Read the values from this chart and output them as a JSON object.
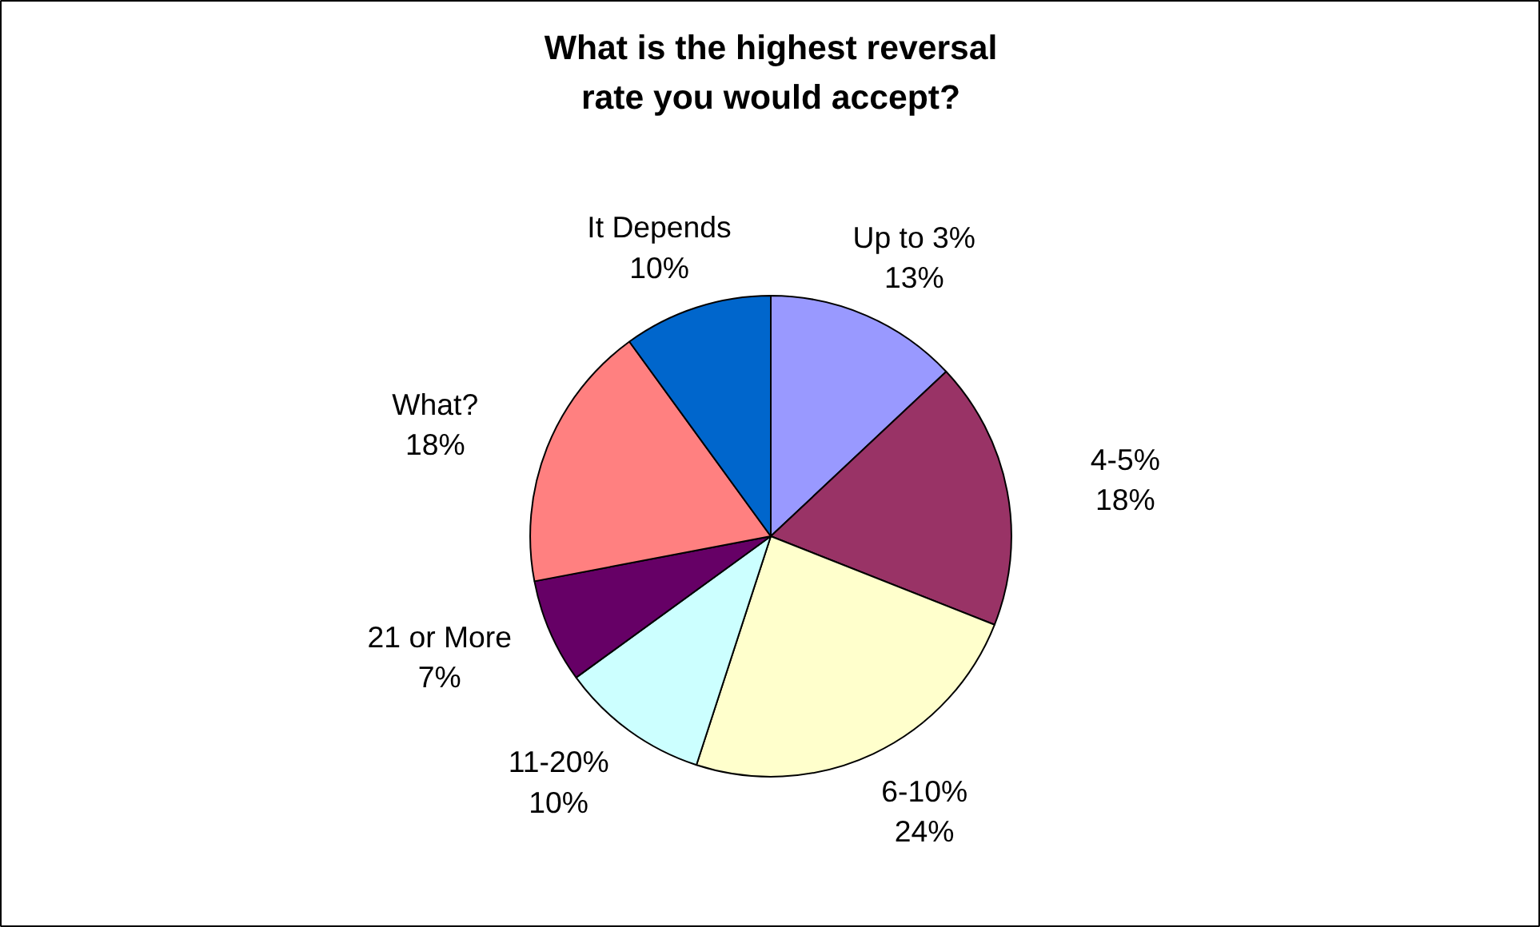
{
  "chart_data": {
    "type": "pie",
    "title": "What is the highest reversal rate you would accept?",
    "categories": [
      "Up to 3%",
      "4-5%",
      "6-10%",
      "11-20%",
      "21 or More",
      "What?",
      "It Depends"
    ],
    "values": [
      13,
      18,
      24,
      10,
      7,
      18,
      10
    ],
    "value_labels": [
      "13%",
      "18%",
      "24%",
      "10%",
      "7%",
      "18%",
      "10%"
    ],
    "colors": [
      "#9999ff",
      "#993366",
      "#ffffcc",
      "#ccffff",
      "#660066",
      "#ff8080",
      "#0066cc"
    ]
  }
}
